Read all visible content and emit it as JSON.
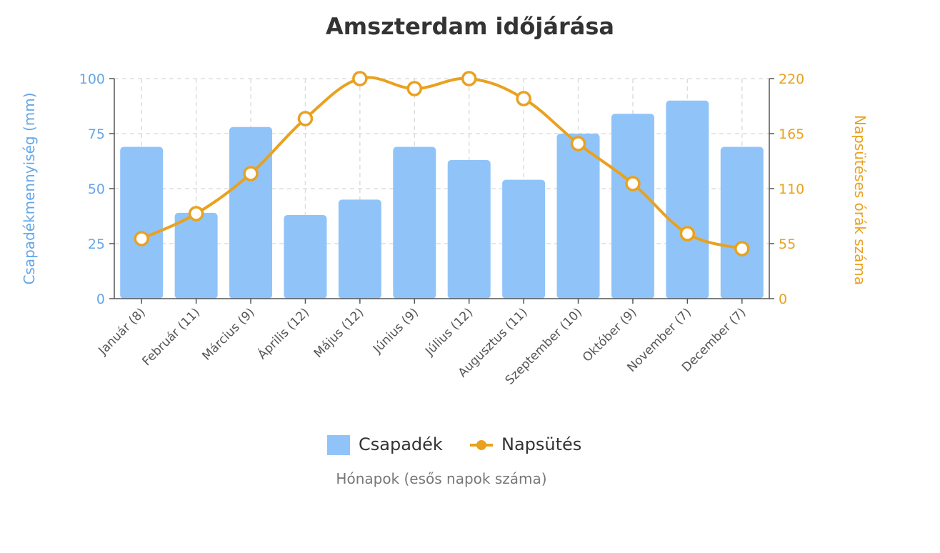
{
  "chart_data": {
    "type": "bar+line",
    "title": "Amszterdam időjárása",
    "xlabel": "Hónapok (esős napok száma)",
    "ylabel_left": "Csapadékmennyiség (mm)",
    "ylabel_right": "Napsütéses órák száma",
    "categories": [
      "Január (8)",
      "Február (11)",
      "Március (9)",
      "Április (12)",
      "Május (12)",
      "Június (9)",
      "Július (12)",
      "Augusztus (11)",
      "Szeptember (10)",
      "Október (9)",
      "November (7)",
      "December (7)"
    ],
    "ylim_left": [
      0,
      100
    ],
    "yticks_left": [
      0,
      25,
      50,
      75,
      100
    ],
    "ylim_right": [
      0,
      220
    ],
    "yticks_right": [
      0,
      55,
      110,
      165,
      220
    ],
    "grid": true,
    "legend_position": "bottom",
    "series": [
      {
        "name": "Csapadék",
        "type": "bar",
        "axis": "left",
        "color": "#90c4f9",
        "values": [
          69,
          39,
          78,
          38,
          45,
          69,
          63,
          54,
          75,
          84,
          90,
          69
        ]
      },
      {
        "name": "Napsütés",
        "type": "line",
        "axis": "right",
        "color": "#e9a11f",
        "smooth": true,
        "values": [
          60,
          85,
          125,
          180,
          220,
          210,
          220,
          200,
          155,
          115,
          65,
          50
        ]
      }
    ],
    "colors": {
      "left_axis": "#64a7e6",
      "right_axis": "#e9a11f",
      "title": "#333333",
      "tick": "#555555",
      "xlabel": "#777777"
    }
  }
}
